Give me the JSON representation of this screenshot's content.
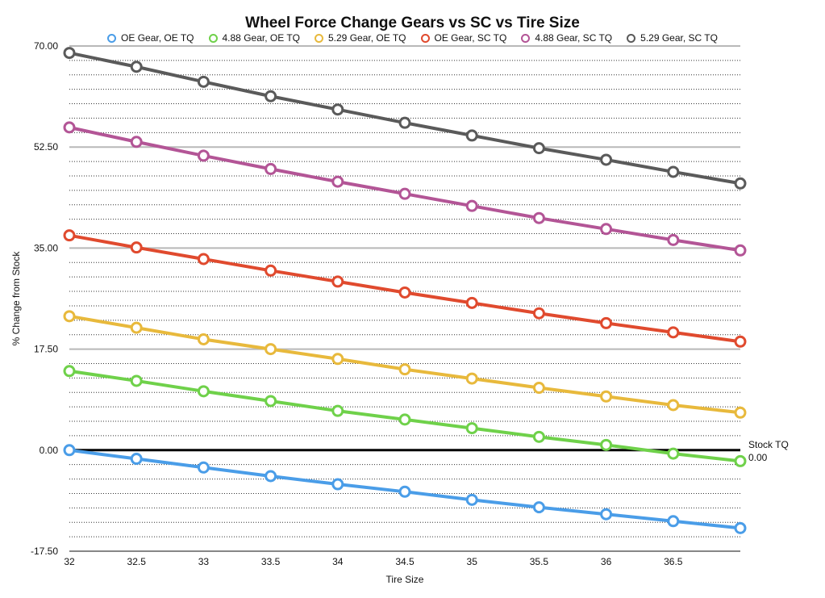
{
  "chart_data": {
    "type": "line",
    "title": "Wheel Force Change Gears vs SC vs Tire Size",
    "xlabel": "Tire Size",
    "ylabel": "% Change from Stock",
    "x": [
      32,
      32.5,
      33,
      33.5,
      34,
      34.5,
      35,
      35.5,
      36,
      36.5,
      37
    ],
    "xlim": [
      32,
      37
    ],
    "ylim": [
      -17.5,
      70
    ],
    "x_tick_labels": [
      "32",
      "32.5",
      "33",
      "33.5",
      "34",
      "34.5",
      "35",
      "35.5",
      "36",
      "36.5"
    ],
    "y_tick_labels": [
      "-17.50",
      "0.00",
      "17.50",
      "35.00",
      "52.50",
      "70.00"
    ],
    "y_major_ticks": [
      -17.5,
      0,
      17.5,
      35,
      52.5,
      70
    ],
    "y_minor_step": 2.5,
    "grid": true,
    "legend_position": "top",
    "series": [
      {
        "name": "OE Gear, OE TQ",
        "color": "#4a9de8",
        "values": [
          0.0,
          -1.5,
          -3.0,
          -4.5,
          -5.9,
          -7.2,
          -8.6,
          -9.9,
          -11.1,
          -12.3,
          -13.5
        ]
      },
      {
        "name": "4.88 Gear, OE TQ",
        "color": "#6fd14a",
        "values": [
          13.7,
          12.0,
          10.2,
          8.5,
          6.8,
          5.3,
          3.8,
          2.3,
          0.9,
          -0.6,
          -1.9
        ]
      },
      {
        "name": "5.29 Gear, OE TQ",
        "color": "#e8b93c",
        "values": [
          23.2,
          21.2,
          19.2,
          17.5,
          15.8,
          14.0,
          12.4,
          10.8,
          9.3,
          7.8,
          6.5
        ]
      },
      {
        "name": "OE Gear, SC TQ",
        "color": "#e04a2e",
        "values": [
          37.2,
          35.1,
          33.1,
          31.1,
          29.2,
          27.3,
          25.5,
          23.7,
          22.0,
          20.4,
          18.8
        ]
      },
      {
        "name": "4.88 Gear, SC TQ",
        "color": "#b35596",
        "values": [
          55.9,
          53.4,
          51.0,
          48.7,
          46.5,
          44.4,
          42.3,
          40.2,
          38.3,
          36.4,
          34.6
        ]
      },
      {
        "name": "5.29 Gear, SC TQ",
        "color": "#5a5a5a",
        "values": [
          68.8,
          66.4,
          63.8,
          61.3,
          59.0,
          56.7,
          54.5,
          52.3,
          50.3,
          48.2,
          46.2
        ]
      }
    ],
    "reference_line": {
      "name": "Stock TQ",
      "value": 0.0,
      "label_value": "0.00",
      "color": "#000000"
    }
  }
}
